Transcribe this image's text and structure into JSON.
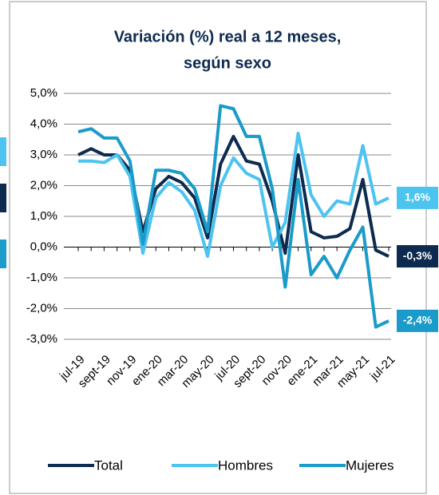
{
  "chart_data": {
    "type": "line",
    "title": [
      "Variación (%) real a 12 meses,",
      "según sexo"
    ],
    "categories": [
      "jul-19",
      null,
      "sept-19",
      null,
      "nov-19",
      null,
      "ene-20",
      null,
      "mar-20",
      null,
      "may-20",
      null,
      "jul-20",
      null,
      "sept-20",
      null,
      "nov-20",
      null,
      "ene-21",
      null,
      "mar-21",
      null,
      "may-21",
      null,
      "jul-21"
    ],
    "ylim": [
      -3,
      5
    ],
    "yticks": [
      {
        "value": -3,
        "label": "-3,0%"
      },
      {
        "value": -2,
        "label": "-2,0%"
      },
      {
        "value": -1,
        "label": "-1,0%"
      },
      {
        "value": 0,
        "label": "0,0%"
      },
      {
        "value": 1,
        "label": "1,0%"
      },
      {
        "value": 2,
        "label": "2,0%"
      },
      {
        "value": 3,
        "label": "3,0%"
      },
      {
        "value": 4,
        "label": "4,0%"
      },
      {
        "value": 5,
        "label": "5,0%"
      }
    ],
    "grid": true,
    "legend": "bottom",
    "series": [
      {
        "name": "Total",
        "color": "#0d2a4f",
        "values": [
          3.0,
          3.2,
          3.0,
          3.0,
          2.5,
          0.5,
          1.9,
          2.3,
          2.1,
          1.6,
          0.3,
          2.7,
          3.6,
          2.8,
          2.7,
          1.5,
          -0.2,
          3.0,
          0.5,
          0.3,
          0.35,
          0.6,
          2.2,
          -0.1,
          -0.3
        ],
        "value_labels": [
          null,
          null,
          null,
          null,
          null,
          null,
          null,
          null,
          null,
          null,
          null,
          null,
          null,
          null,
          null,
          null,
          null,
          null,
          null,
          null,
          null,
          null,
          null,
          null,
          "-0,3%"
        ]
      },
      {
        "name": "Hombres",
        "color": "#4dc3f0",
        "values": [
          2.8,
          2.8,
          2.75,
          3.0,
          2.3,
          -0.2,
          1.6,
          2.1,
          1.8,
          1.2,
          -0.3,
          2.0,
          2.9,
          2.4,
          2.2,
          0.0,
          0.8,
          3.7,
          1.7,
          1.0,
          1.5,
          1.4,
          3.3,
          1.4,
          1.6
        ],
        "value_labels": [
          null,
          null,
          null,
          null,
          null,
          null,
          null,
          null,
          null,
          null,
          null,
          null,
          null,
          null,
          null,
          null,
          null,
          null,
          null,
          null,
          null,
          null,
          null,
          null,
          "1,6%"
        ]
      },
      {
        "name": "Mujeres",
        "color": "#1a9bc9",
        "values": [
          3.75,
          3.85,
          3.55,
          3.55,
          2.8,
          0.1,
          2.5,
          2.5,
          2.4,
          1.9,
          0.5,
          4.6,
          4.5,
          3.6,
          3.6,
          1.9,
          -1.3,
          2.2,
          -0.9,
          -0.3,
          -1.0,
          -0.1,
          0.65,
          -2.6,
          -2.4
        ],
        "value_labels": [
          null,
          null,
          null,
          null,
          null,
          null,
          null,
          null,
          null,
          null,
          null,
          null,
          null,
          null,
          null,
          null,
          null,
          null,
          null,
          null,
          null,
          null,
          null,
          null,
          "-2,4%"
        ]
      }
    ]
  }
}
